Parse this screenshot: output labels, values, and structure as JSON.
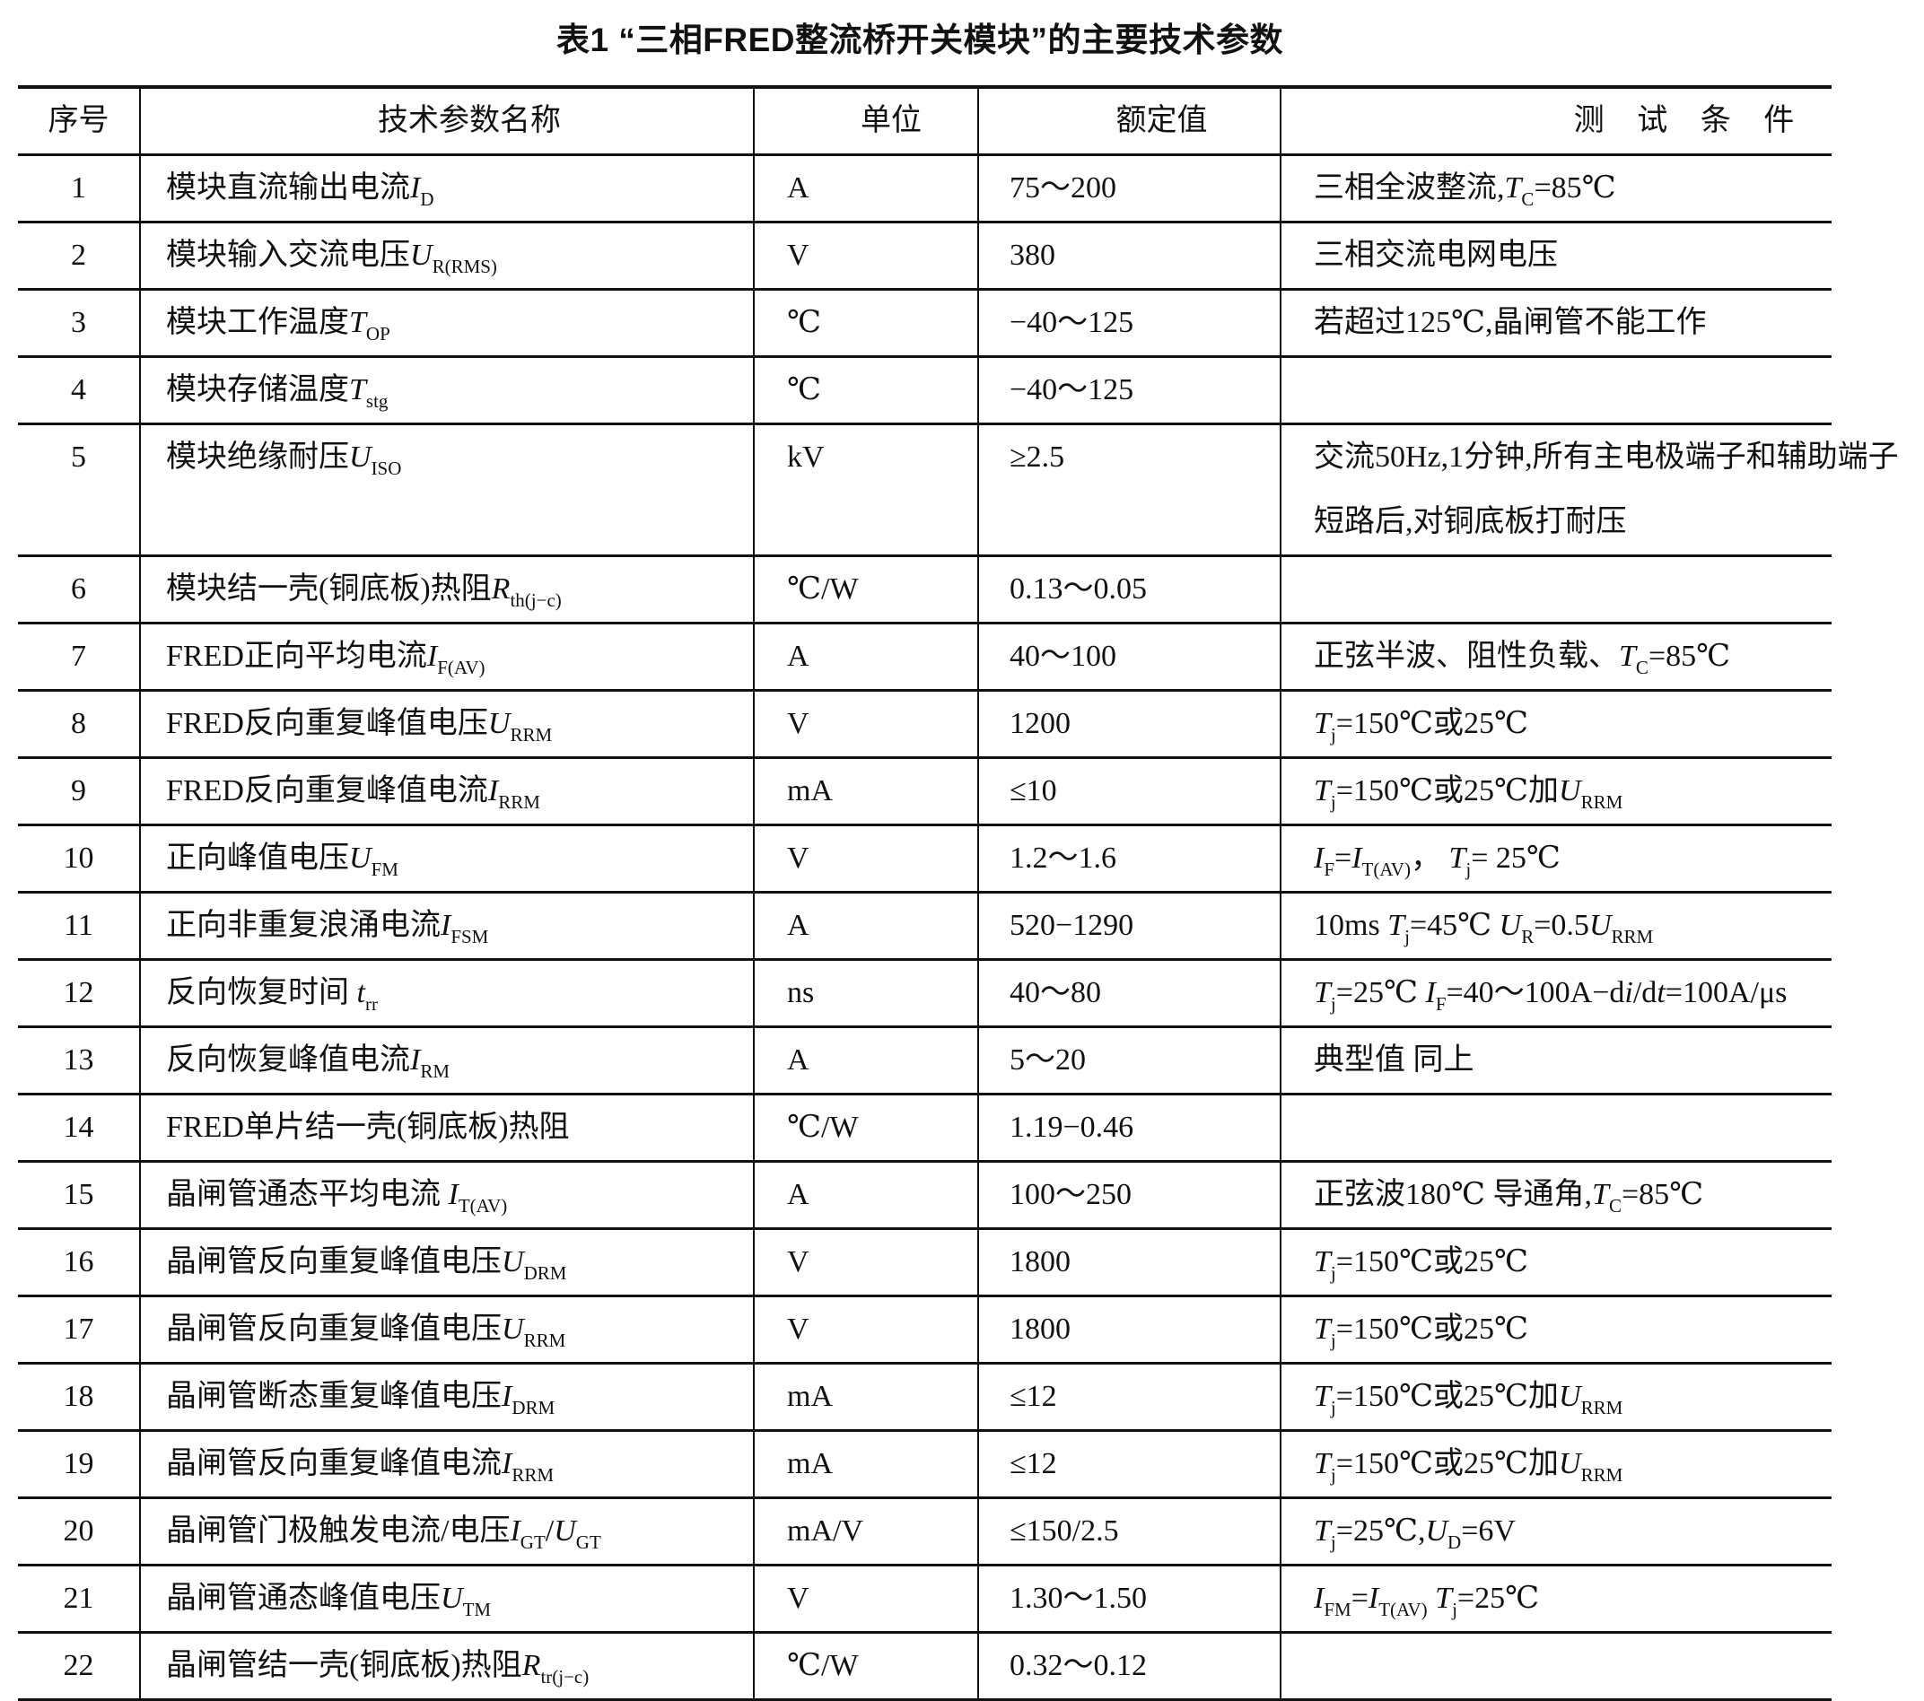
{
  "title": "表1 “三相FRED整流桥开关模块”的主要技术参数",
  "table": {
    "headers": [
      "序号",
      "技术参数名称",
      "单位",
      "额定值",
      "测 试 条 件"
    ],
    "rows": [
      {
        "no": "1",
        "name": [
          [
            "t",
            "模块直流输出电流"
          ],
          [
            "i",
            "I"
          ],
          [
            "s",
            "D"
          ]
        ],
        "unit": "A",
        "value": "75～200",
        "cond": [
          [
            "t",
            "三相全波整流,"
          ],
          [
            "i",
            "T"
          ],
          [
            "s",
            "C"
          ],
          [
            "t",
            "=85℃"
          ]
        ]
      },
      {
        "no": "2",
        "name": [
          [
            "t",
            "模块输入交流电压"
          ],
          [
            "i",
            "U"
          ],
          [
            "s",
            "R(RMS)"
          ]
        ],
        "unit": "V",
        "value": "380",
        "cond": [
          [
            "t",
            "三相交流电网电压"
          ]
        ]
      },
      {
        "no": "3",
        "name": [
          [
            "t",
            "模块工作温度"
          ],
          [
            "i",
            "T"
          ],
          [
            "s",
            "OP"
          ]
        ],
        "unit": "℃",
        "value": "−40～125",
        "cond": [
          [
            "t",
            "若超过125℃,晶闸管不能工作"
          ]
        ]
      },
      {
        "no": "4",
        "name": [
          [
            "t",
            "模块存储温度"
          ],
          [
            "i",
            "T"
          ],
          [
            "s",
            "stg"
          ]
        ],
        "unit": "℃",
        "value": "−40～125",
        "cond": []
      },
      {
        "no": "5",
        "name": [
          [
            "t",
            "模块绝缘耐压"
          ],
          [
            "i",
            "U"
          ],
          [
            "s",
            "ISO"
          ]
        ],
        "unit": "kV",
        "value": "≥2.5",
        "cond": [
          [
            "t",
            "交流50Hz,1分钟,所有主电极端子和辅助端子短路后,对铜底板打耐压"
          ]
        ]
      },
      {
        "no": "6",
        "name": [
          [
            "t",
            "模块结一壳(铜底板)热阻"
          ],
          [
            "i",
            "R"
          ],
          [
            "s",
            "th(j−c)"
          ]
        ],
        "unit": "℃/W",
        "value": "0.13～0.05",
        "cond": []
      },
      {
        "no": "7",
        "name": [
          [
            "t",
            "FRED正向平均电流"
          ],
          [
            "i",
            "I"
          ],
          [
            "s",
            "F(AV)"
          ]
        ],
        "unit": "A",
        "value": "40～100",
        "cond": [
          [
            "t",
            "正弦半波、阻性负载、"
          ],
          [
            "i",
            "T"
          ],
          [
            "s",
            "C"
          ],
          [
            "t",
            "=85℃"
          ]
        ]
      },
      {
        "no": "8",
        "name": [
          [
            "t",
            "FRED反向重复峰值电压"
          ],
          [
            "i",
            "U"
          ],
          [
            "s",
            "RRM"
          ]
        ],
        "unit": "V",
        "value": "1200",
        "cond": [
          [
            "i",
            "T"
          ],
          [
            "s",
            "j"
          ],
          [
            "t",
            "=150℃或25℃"
          ]
        ]
      },
      {
        "no": "9",
        "name": [
          [
            "t",
            "FRED反向重复峰值电流"
          ],
          [
            "i",
            "I"
          ],
          [
            "s",
            "RRM"
          ]
        ],
        "unit": "mA",
        "value": "≤10",
        "cond": [
          [
            "i",
            "T"
          ],
          [
            "s",
            "j"
          ],
          [
            "t",
            "=150℃或25℃加"
          ],
          [
            "i",
            "U"
          ],
          [
            "s",
            "RRM"
          ]
        ]
      },
      {
        "no": "10",
        "name": [
          [
            "t",
            "正向峰值电压"
          ],
          [
            "i",
            "U"
          ],
          [
            "s",
            "FM"
          ]
        ],
        "unit": "V",
        "value": "1.2～1.6",
        "cond": [
          [
            "i",
            "I"
          ],
          [
            "s",
            "F"
          ],
          [
            "t",
            "="
          ],
          [
            "i",
            "I"
          ],
          [
            "s",
            "T(AV)"
          ],
          [
            "t",
            "， "
          ],
          [
            "i",
            "T"
          ],
          [
            "s",
            "j"
          ],
          [
            "t",
            "= 25℃"
          ]
        ]
      },
      {
        "no": "11",
        "name": [
          [
            "t",
            "正向非重复浪涌电流"
          ],
          [
            "i",
            "I"
          ],
          [
            "s",
            "FSM"
          ]
        ],
        "unit": "A",
        "value": "520−1290",
        "cond": [
          [
            "t",
            "10ms  "
          ],
          [
            "i",
            "T"
          ],
          [
            "s",
            "j"
          ],
          [
            "t",
            "=45℃    "
          ],
          [
            "i",
            "U"
          ],
          [
            "s",
            "R"
          ],
          [
            "t",
            "=0.5"
          ],
          [
            "i",
            "U"
          ],
          [
            "s",
            "RRM"
          ]
        ]
      },
      {
        "no": "12",
        "name": [
          [
            "t",
            "反向恢复时间  "
          ],
          [
            "i",
            "t"
          ],
          [
            "s",
            "rr"
          ]
        ],
        "unit": "ns",
        "value": "40～80",
        "cond": [
          [
            "i",
            "T"
          ],
          [
            "s",
            "j"
          ],
          [
            "t",
            "=25℃  "
          ],
          [
            "i",
            "I"
          ],
          [
            "s",
            "F"
          ],
          [
            "t",
            "=40～100A−d"
          ],
          [
            "i",
            "i"
          ],
          [
            "t",
            "/d"
          ],
          [
            "i",
            "t"
          ],
          [
            "t",
            "=100A/μs"
          ]
        ]
      },
      {
        "no": "13",
        "name": [
          [
            "t",
            "反向恢复峰值电流"
          ],
          [
            "i",
            "I"
          ],
          [
            "s",
            "RM"
          ]
        ],
        "unit": "A",
        "value": "5～20",
        "cond": [
          [
            "t",
            "典型值    同上"
          ]
        ]
      },
      {
        "no": "14",
        "name": [
          [
            "t",
            "FRED单片结一壳(铜底板)热阻"
          ]
        ],
        "unit": "℃/W",
        "value": "1.19−0.46",
        "cond": []
      },
      {
        "no": "15",
        "name": [
          [
            "t",
            "晶闸管通态平均电流  "
          ],
          [
            "i",
            "I"
          ],
          [
            "s",
            "T(AV)"
          ]
        ],
        "unit": "A",
        "value": "100～250",
        "cond": [
          [
            "t",
            "正弦波180℃  导通角,"
          ],
          [
            "i",
            "T"
          ],
          [
            "s",
            "C"
          ],
          [
            "t",
            "=85℃"
          ]
        ]
      },
      {
        "no": "16",
        "name": [
          [
            "t",
            "晶闸管反向重复峰值电压"
          ],
          [
            "i",
            "U"
          ],
          [
            "s",
            "DRM"
          ]
        ],
        "unit": "V",
        "value": "1800",
        "cond": [
          [
            "i",
            "T"
          ],
          [
            "s",
            "j"
          ],
          [
            "t",
            "=150℃或25℃"
          ]
        ]
      },
      {
        "no": "17",
        "name": [
          [
            "t",
            "晶闸管反向重复峰值电压"
          ],
          [
            "i",
            "U"
          ],
          [
            "s",
            "RRM"
          ]
        ],
        "unit": "V",
        "value": "1800",
        "cond": [
          [
            "i",
            "T"
          ],
          [
            "s",
            "j"
          ],
          [
            "t",
            "=150℃或25℃"
          ]
        ]
      },
      {
        "no": "18",
        "name": [
          [
            "t",
            "晶闸管断态重复峰值电压"
          ],
          [
            "i",
            "I"
          ],
          [
            "s",
            "DRM"
          ]
        ],
        "unit": "mA",
        "value": "≤12",
        "cond": [
          [
            "i",
            "T"
          ],
          [
            "s",
            "j"
          ],
          [
            "t",
            "=150℃或25℃加"
          ],
          [
            "i",
            "U"
          ],
          [
            "s",
            "RRM"
          ]
        ]
      },
      {
        "no": "19",
        "name": [
          [
            "t",
            "晶闸管反向重复峰值电流"
          ],
          [
            "i",
            "I"
          ],
          [
            "s",
            "RRM"
          ]
        ],
        "unit": "mA",
        "value": "≤12",
        "cond": [
          [
            "i",
            "T"
          ],
          [
            "s",
            "j"
          ],
          [
            "t",
            "=150℃或25℃加"
          ],
          [
            "i",
            "U"
          ],
          [
            "s",
            "RRM"
          ]
        ]
      },
      {
        "no": "20",
        "name": [
          [
            "t",
            "晶闸管门极触发电流/电压"
          ],
          [
            "i",
            "I"
          ],
          [
            "s",
            "GT"
          ],
          [
            "t",
            "/"
          ],
          [
            "i",
            "U"
          ],
          [
            "s",
            "GT"
          ]
        ],
        "unit": "mA/V",
        "value": "≤150/2.5",
        "cond": [
          [
            "i",
            "T"
          ],
          [
            "s",
            "j"
          ],
          [
            "t",
            "=25℃,"
          ],
          [
            "i",
            "U"
          ],
          [
            "s",
            "D"
          ],
          [
            "t",
            "=6V"
          ]
        ]
      },
      {
        "no": "21",
        "name": [
          [
            "t",
            "晶闸管通态峰值电压"
          ],
          [
            "i",
            "U"
          ],
          [
            "s",
            "TM"
          ]
        ],
        "unit": "V",
        "value": "1.30～1.50",
        "cond": [
          [
            "i",
            "I"
          ],
          [
            "s",
            "FM"
          ],
          [
            "t",
            "="
          ],
          [
            "i",
            "I"
          ],
          [
            "s",
            "T(AV)"
          ],
          [
            "t",
            "  "
          ],
          [
            "i",
            "T"
          ],
          [
            "s",
            "j"
          ],
          [
            "t",
            "=25℃"
          ]
        ]
      },
      {
        "no": "22",
        "name": [
          [
            "t",
            "晶闸管结一壳(铜底板)热阻"
          ],
          [
            "i",
            "R"
          ],
          [
            "s",
            "tr(j−c)"
          ]
        ],
        "unit": "℃/W",
        "value": "0.32～0.12",
        "cond": []
      }
    ]
  }
}
